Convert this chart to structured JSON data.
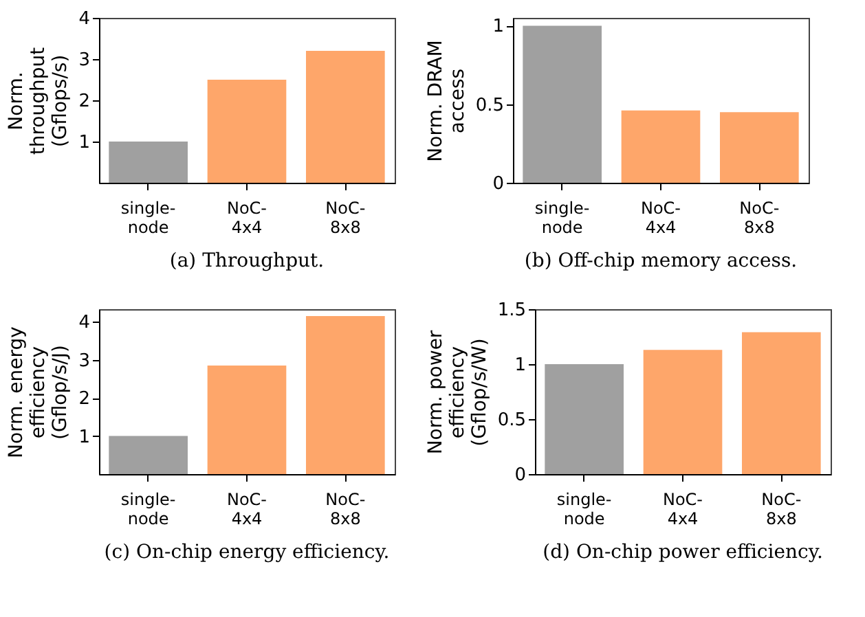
{
  "chart_data": [
    {
      "type": "bar",
      "title": "(a) Throughput.",
      "ylabel": "Norm.\nthroughput\n(Gflops/s)",
      "categories": [
        "single-node",
        "NoC-4x4",
        "NoC-8x8"
      ],
      "values": [
        1.0,
        2.5,
        3.2
      ],
      "colors": [
        "#a0a0a0",
        "#fea66a",
        "#fea66a"
      ],
      "ylim": [
        0,
        4
      ],
      "yticks": [
        1,
        2,
        3,
        4
      ],
      "grid": false
    },
    {
      "type": "bar",
      "title": "(b) Off-chip memory access.",
      "ylabel": "Norm. DRAM\naccess",
      "categories": [
        "single-node",
        "NoC-4x4",
        "NoC-8x8"
      ],
      "values": [
        1.0,
        0.46,
        0.45
      ],
      "colors": [
        "#a0a0a0",
        "#fea66a",
        "#fea66a"
      ],
      "ylim": [
        0,
        1.05
      ],
      "yticks": [
        0,
        0.5,
        1
      ],
      "grid": false
    },
    {
      "type": "bar",
      "title": "(c) On-chip energy efficiency.",
      "ylabel": "Norm. energy\nefficiency\n(Gflop/s/J)",
      "categories": [
        "single-node",
        "NoC-4x4",
        "NoC-8x8"
      ],
      "values": [
        1.0,
        2.85,
        4.15
      ],
      "colors": [
        "#a0a0a0",
        "#fea66a",
        "#fea66a"
      ],
      "ylim": [
        0,
        4.33
      ],
      "yticks": [
        1,
        2,
        3,
        4
      ],
      "grid": false
    },
    {
      "type": "bar",
      "title": "(d) On-chip power efficiency.",
      "ylabel": "Norm. power\nefficiency\n(Gflop/s/W)",
      "categories": [
        "single-node",
        "NoC-4x4",
        "NoC-8x8"
      ],
      "values": [
        1.0,
        1.13,
        1.29
      ],
      "colors": [
        "#a0a0a0",
        "#fea66a",
        "#fea66a"
      ],
      "ylim": [
        0,
        1.5
      ],
      "yticks": [
        0,
        0.5,
        1,
        1.5
      ],
      "grid": false
    }
  ]
}
